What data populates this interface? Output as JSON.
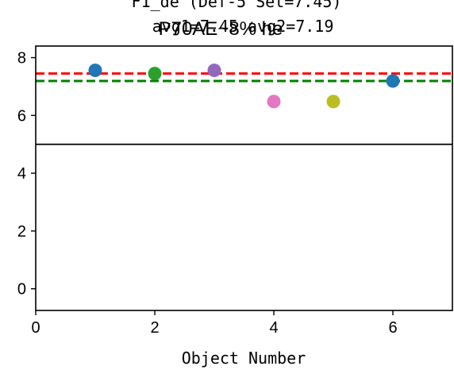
{
  "chart_data": {
    "type": "scatter",
    "title": "F1_de (Def-5 Set=7.45)",
    "subtitle": "avg1=7.45  avg2=7.19",
    "overlap_title": "P70AE~8% he",
    "xlabel": "Object Number",
    "ylabel": "",
    "xlim": [
      0,
      7
    ],
    "ylim": [
      -0.75,
      8.4
    ],
    "xticks": [
      0,
      2,
      4,
      6
    ],
    "yticks": [
      0,
      2,
      4,
      6,
      8
    ],
    "grid": false,
    "points": [
      {
        "x": 1,
        "y": 7.56,
        "color": "#1f77b4"
      },
      {
        "x": 2,
        "y": 7.45,
        "color": "#2ca02c"
      },
      {
        "x": 3,
        "y": 7.56,
        "color": "#9467bd"
      },
      {
        "x": 4,
        "y": 6.48,
        "color": "#e377c2"
      },
      {
        "x": 5,
        "y": 6.48,
        "color": "#bcbd22"
      },
      {
        "x": 6,
        "y": 7.19,
        "color": "#1f77b4"
      }
    ],
    "reference_lines": [
      {
        "y": 7.45,
        "color": "#ff0000",
        "style": "dashed"
      },
      {
        "y": 7.19,
        "color": "#008000",
        "style": "dashed"
      },
      {
        "y": 5.0,
        "color": "#000000",
        "style": "solid"
      }
    ]
  }
}
